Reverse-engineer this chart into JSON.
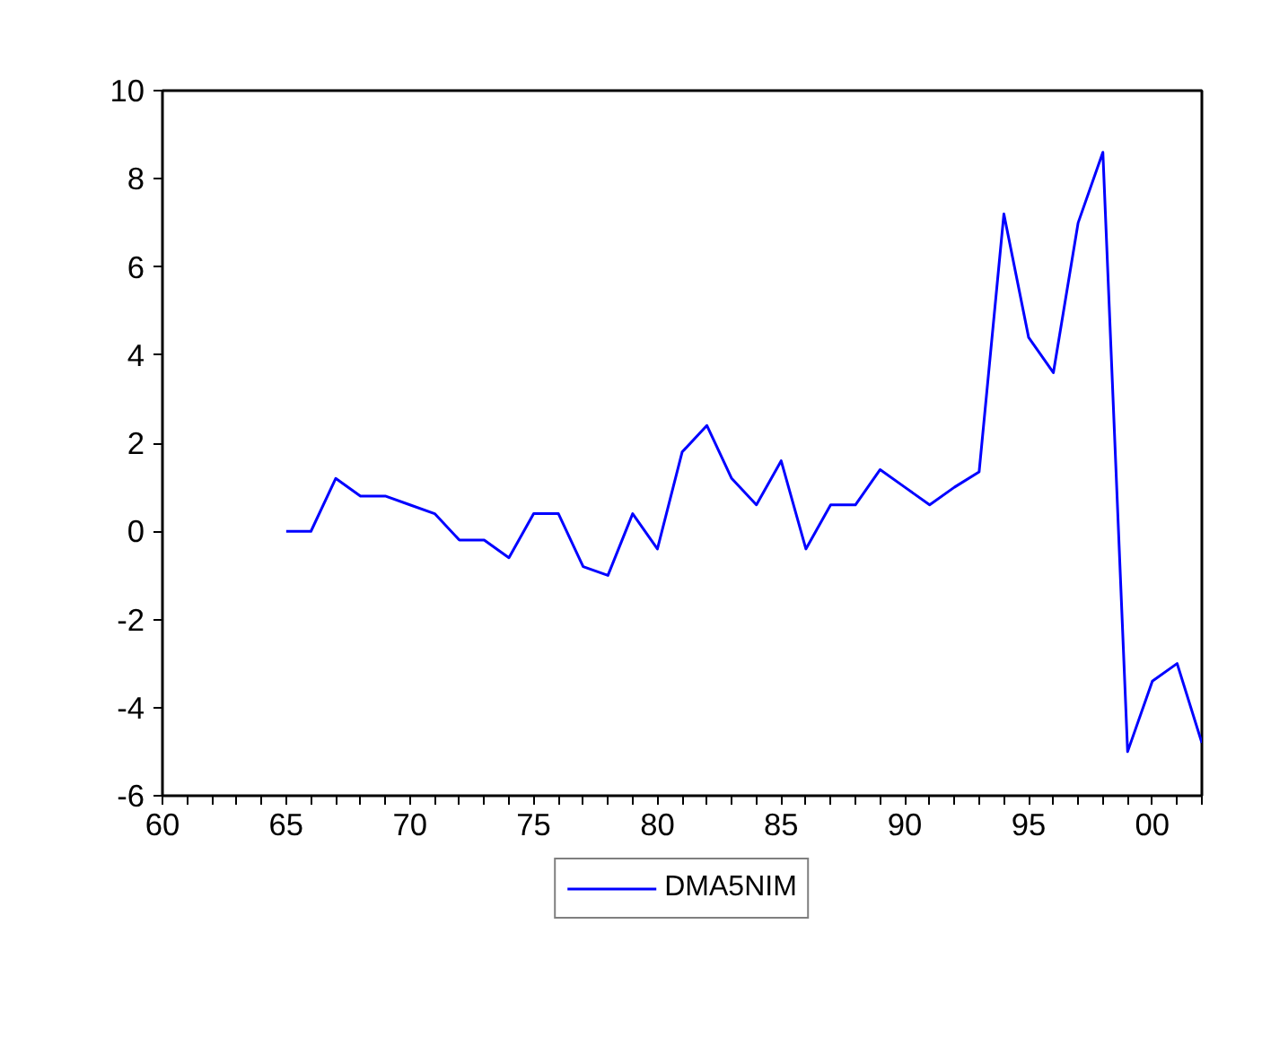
{
  "chart_data": {
    "type": "line",
    "x": [
      1965,
      1966,
      1967,
      1968,
      1969,
      1970,
      1971,
      1972,
      1973,
      1974,
      1975,
      1976,
      1977,
      1978,
      1979,
      1980,
      1981,
      1982,
      1983,
      1984,
      1985,
      1986,
      1987,
      1988,
      1989,
      1990,
      1991,
      1992,
      1993,
      1994,
      1995,
      1996,
      1997,
      1998,
      1999,
      2000,
      2001,
      2002
    ],
    "series": [
      {
        "name": "DMA5NIM",
        "color": "#0000ff",
        "values": [
          0,
          0,
          1.2,
          0.8,
          0.8,
          0.6,
          0.4,
          -0.2,
          -0.2,
          -0.6,
          0.4,
          0.4,
          -0.8,
          -1.0,
          0.4,
          -0.4,
          1.8,
          2.4,
          1.2,
          0.6,
          1.6,
          -0.4,
          0.6,
          0.6,
          1.4,
          1.0,
          0.6,
          1.0,
          1.35,
          7.2,
          4.4,
          3.6,
          7.0,
          8.6,
          -5.0,
          -3.4,
          -3.0,
          -4.8
        ]
      }
    ],
    "xlim": [
      1960,
      2002
    ],
    "xticks": [
      {
        "value": 1960,
        "label": "60"
      },
      {
        "value": 1961,
        "label": null
      },
      {
        "value": 1962,
        "label": null
      },
      {
        "value": 1963,
        "label": null
      },
      {
        "value": 1964,
        "label": null
      },
      {
        "value": 1965,
        "label": "65"
      },
      {
        "value": 1966,
        "label": null
      },
      {
        "value": 1967,
        "label": null
      },
      {
        "value": 1968,
        "label": null
      },
      {
        "value": 1969,
        "label": null
      },
      {
        "value": 1970,
        "label": "70"
      },
      {
        "value": 1971,
        "label": null
      },
      {
        "value": 1972,
        "label": null
      },
      {
        "value": 1973,
        "label": null
      },
      {
        "value": 1974,
        "label": null
      },
      {
        "value": 1975,
        "label": "75"
      },
      {
        "value": 1976,
        "label": null
      },
      {
        "value": 1977,
        "label": null
      },
      {
        "value": 1978,
        "label": null
      },
      {
        "value": 1979,
        "label": null
      },
      {
        "value": 1980,
        "label": "80"
      },
      {
        "value": 1981,
        "label": null
      },
      {
        "value": 1982,
        "label": null
      },
      {
        "value": 1983,
        "label": null
      },
      {
        "value": 1984,
        "label": null
      },
      {
        "value": 1985,
        "label": "85"
      },
      {
        "value": 1986,
        "label": null
      },
      {
        "value": 1987,
        "label": null
      },
      {
        "value": 1988,
        "label": null
      },
      {
        "value": 1989,
        "label": null
      },
      {
        "value": 1990,
        "label": "90"
      },
      {
        "value": 1991,
        "label": null
      },
      {
        "value": 1992,
        "label": null
      },
      {
        "value": 1993,
        "label": null
      },
      {
        "value": 1994,
        "label": null
      },
      {
        "value": 1995,
        "label": "95"
      },
      {
        "value": 1996,
        "label": null
      },
      {
        "value": 1997,
        "label": null
      },
      {
        "value": 1998,
        "label": null
      },
      {
        "value": 1999,
        "label": null
      },
      {
        "value": 2000,
        "label": "00"
      },
      {
        "value": 2001,
        "label": null
      },
      {
        "value": 2002,
        "label": null
      }
    ],
    "ylim": [
      -6,
      10
    ],
    "yticks": [
      -6,
      -4,
      -2,
      0,
      2,
      4,
      6,
      8,
      10
    ],
    "grid": false,
    "legend": "bottom",
    "line_style": "solid"
  }
}
